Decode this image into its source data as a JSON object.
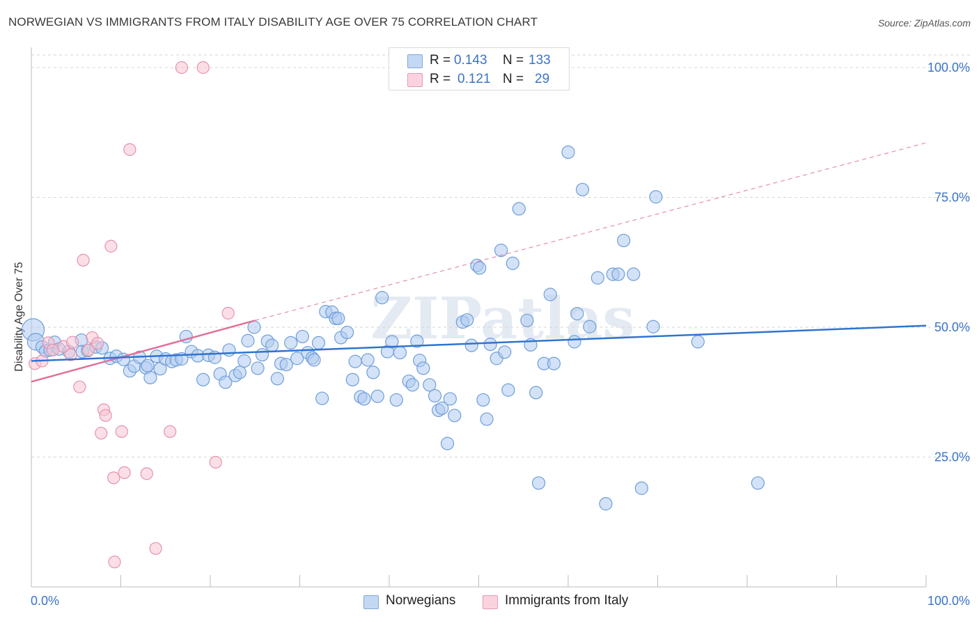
{
  "title": "NORWEGIAN VS IMMIGRANTS FROM ITALY DISABILITY AGE OVER 75 CORRELATION CHART",
  "source": "Source: ZipAtlas.com",
  "watermark": "ZIPatlas",
  "colors": {
    "blue_fill": "#aecbf0",
    "blue_stroke": "#6f9ed8",
    "blue_line": "#2f74d0",
    "pink_fill": "#f8c4d4",
    "pink_stroke": "#e592ad",
    "pink_line": "#e0709a",
    "axis_value": "#3a73c7",
    "grid": "#d6d6d6"
  },
  "legend_top": {
    "rows": [
      {
        "r_label": "R =",
        "r_value": "0.143",
        "n_label": "N =",
        "n_value": "133"
      },
      {
        "r_label": "R =",
        "r_value": "0.121",
        "n_label": "N =",
        "n_value": "29"
      }
    ]
  },
  "legend_bottom": {
    "items": [
      "Norwegians",
      "Immigrants from Italy"
    ]
  },
  "chart_data": {
    "type": "scatter",
    "title": "NORWEGIAN VS IMMIGRANTS FROM ITALY DISABILITY AGE OVER 75 CORRELATION CHART",
    "xlabel": "",
    "ylabel": "Disability Age Over 75",
    "xlim": [
      0,
      100
    ],
    "ylim": [
      0,
      100
    ],
    "x_tick_labels": [
      "0.0%",
      "100.0%"
    ],
    "y_tick_labels": [
      "25.0%",
      "50.0%",
      "75.0%",
      "100.0%"
    ],
    "y_ticks": [
      25,
      50,
      75,
      100
    ],
    "grid": "horizontal dashed",
    "legend": "top-center and bottom",
    "series": [
      {
        "name": "Norwegians",
        "R": 0.143,
        "N": 133,
        "trend": {
          "x": [
            0,
            100
          ],
          "y": [
            43.5,
            50.3
          ]
        },
        "points": [
          [
            0.2,
            49.5
          ],
          [
            0.5,
            47.2
          ],
          [
            1.2,
            46.2
          ],
          [
            1.6,
            45.4
          ],
          [
            2.1,
            45.6
          ],
          [
            2.6,
            47.1
          ],
          [
            3.1,
            45.8
          ],
          [
            4.2,
            45.3
          ],
          [
            5.6,
            47.5
          ],
          [
            5.7,
            45.3
          ],
          [
            6.3,
            45.5
          ],
          [
            7.2,
            46.2
          ],
          [
            7.9,
            46.0
          ],
          [
            8.8,
            44.0
          ],
          [
            9.5,
            44.4
          ],
          [
            10.3,
            43.8
          ],
          [
            11.0,
            41.6
          ],
          [
            11.5,
            42.5
          ],
          [
            12.1,
            44.2
          ],
          [
            12.8,
            42.2
          ],
          [
            13.0,
            42.6
          ],
          [
            13.3,
            40.3
          ],
          [
            14.0,
            44.4
          ],
          [
            14.4,
            42.0
          ],
          [
            15.0,
            43.9
          ],
          [
            15.7,
            43.4
          ],
          [
            16.2,
            43.7
          ],
          [
            16.8,
            43.9
          ],
          [
            17.3,
            48.2
          ],
          [
            17.9,
            45.3
          ],
          [
            18.6,
            44.5
          ],
          [
            19.2,
            39.9
          ],
          [
            19.8,
            44.6
          ],
          [
            20.5,
            44.2
          ],
          [
            21.1,
            41.0
          ],
          [
            21.7,
            39.4
          ],
          [
            22.1,
            45.6
          ],
          [
            22.8,
            40.7
          ],
          [
            23.3,
            41.3
          ],
          [
            23.8,
            43.5
          ],
          [
            24.2,
            47.4
          ],
          [
            24.9,
            50.0
          ],
          [
            25.3,
            42.1
          ],
          [
            25.8,
            44.7
          ],
          [
            26.4,
            47.3
          ],
          [
            26.9,
            46.5
          ],
          [
            27.5,
            40.1
          ],
          [
            27.9,
            43.0
          ],
          [
            28.5,
            42.8
          ],
          [
            29.0,
            47.0
          ],
          [
            29.7,
            44.0
          ],
          [
            30.3,
            48.2
          ],
          [
            30.9,
            45.1
          ],
          [
            31.4,
            44.1
          ],
          [
            31.6,
            43.7
          ],
          [
            32.1,
            47.0
          ],
          [
            32.5,
            36.3
          ],
          [
            32.9,
            53.0
          ],
          [
            33.6,
            52.9
          ],
          [
            34.0,
            51.7
          ],
          [
            34.3,
            51.7
          ],
          [
            34.6,
            48.0
          ],
          [
            35.3,
            49.0
          ],
          [
            35.9,
            39.9
          ],
          [
            36.2,
            43.4
          ],
          [
            36.8,
            36.6
          ],
          [
            37.2,
            36.2
          ],
          [
            37.6,
            43.7
          ],
          [
            38.2,
            41.3
          ],
          [
            38.7,
            36.7
          ],
          [
            39.2,
            55.7
          ],
          [
            39.8,
            45.3
          ],
          [
            40.3,
            47.2
          ],
          [
            40.8,
            36.0
          ],
          [
            41.2,
            45.1
          ],
          [
            42.2,
            39.6
          ],
          [
            42.6,
            38.9
          ],
          [
            43.1,
            47.3
          ],
          [
            43.4,
            43.6
          ],
          [
            43.8,
            42.1
          ],
          [
            44.5,
            38.9
          ],
          [
            45.1,
            36.8
          ],
          [
            45.5,
            34.0
          ],
          [
            45.9,
            34.4
          ],
          [
            46.5,
            27.6
          ],
          [
            46.8,
            36.2
          ],
          [
            47.3,
            33.0
          ],
          [
            48.2,
            51.0
          ],
          [
            48.7,
            51.4
          ],
          [
            49.2,
            46.5
          ],
          [
            49.8,
            61.9
          ],
          [
            50.1,
            61.4
          ],
          [
            50.5,
            36.0
          ],
          [
            50.9,
            32.3
          ],
          [
            51.3,
            46.7
          ],
          [
            52.0,
            44.0
          ],
          [
            52.5,
            64.8
          ],
          [
            52.9,
            45.2
          ],
          [
            53.3,
            37.9
          ],
          [
            53.8,
            62.3
          ],
          [
            54.5,
            72.8
          ],
          [
            55.4,
            51.3
          ],
          [
            55.8,
            46.6
          ],
          [
            56.4,
            37.4
          ],
          [
            56.7,
            20.0
          ],
          [
            57.3,
            43.0
          ],
          [
            58.0,
            56.3
          ],
          [
            58.4,
            43.0
          ],
          [
            60.0,
            83.7
          ],
          [
            60.7,
            47.2
          ],
          [
            61.0,
            52.6
          ],
          [
            61.6,
            76.5
          ],
          [
            62.4,
            50.1
          ],
          [
            63.3,
            59.5
          ],
          [
            64.2,
            16.0
          ],
          [
            65.0,
            60.2
          ],
          [
            65.6,
            60.2
          ],
          [
            66.2,
            66.7
          ],
          [
            67.3,
            60.2
          ],
          [
            68.2,
            19.0
          ],
          [
            69.5,
            50.1
          ],
          [
            69.8,
            75.1
          ],
          [
            74.5,
            47.2
          ],
          [
            81.2,
            20.0
          ]
        ]
      },
      {
        "name": "Immigrants from Italy",
        "R": 0.121,
        "N": 29,
        "trend": {
          "x": [
            0,
            25
          ],
          "y": [
            39.5,
            51.3
          ]
        },
        "trend_dashed": {
          "x": [
            25,
            100
          ],
          "y": [
            51.3,
            85.5
          ]
        },
        "points": [
          [
            0.4,
            43.0
          ],
          [
            1.2,
            43.5
          ],
          [
            1.9,
            47.0
          ],
          [
            2.4,
            45.6
          ],
          [
            3.6,
            46.3
          ],
          [
            4.4,
            44.7
          ],
          [
            4.6,
            47.1
          ],
          [
            5.4,
            38.5
          ],
          [
            5.8,
            62.9
          ],
          [
            6.4,
            45.6
          ],
          [
            6.8,
            48.0
          ],
          [
            7.4,
            46.9
          ],
          [
            7.8,
            29.6
          ],
          [
            8.1,
            34.1
          ],
          [
            8.3,
            33.0
          ],
          [
            8.9,
            65.6
          ],
          [
            9.2,
            21.0
          ],
          [
            9.3,
            4.8
          ],
          [
            10.1,
            29.9
          ],
          [
            10.4,
            22.0
          ],
          [
            11.0,
            84.2
          ],
          [
            12.9,
            21.8
          ],
          [
            13.9,
            7.4
          ],
          [
            15.5,
            29.9
          ],
          [
            16.8,
            100.0
          ],
          [
            19.2,
            100.0
          ],
          [
            20.6,
            24.0
          ],
          [
            22.0,
            52.7
          ]
        ]
      }
    ]
  }
}
